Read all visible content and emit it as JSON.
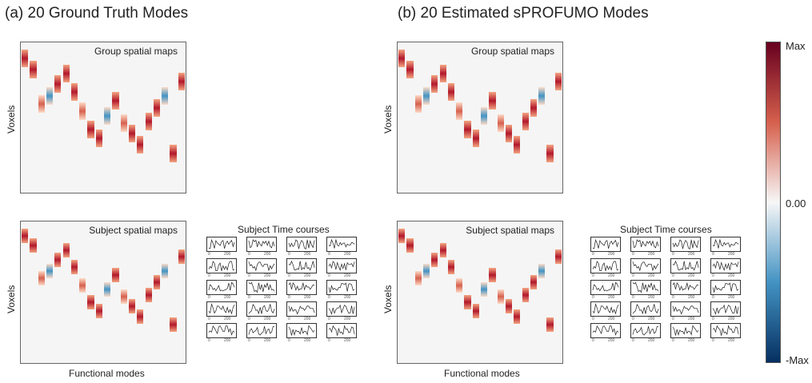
{
  "panels": {
    "a_title": "(a) 20 Ground Truth Modes",
    "b_title": "(b) 20 Estimated sPROFUMO Modes"
  },
  "labels": {
    "group_maps": "Group spatial maps",
    "subject_maps": "Subject spatial maps",
    "time_courses": "Subject Time courses",
    "voxels": "Voxels",
    "functional_modes": "Functional modes",
    "tick_0": "0",
    "tick_200": "200"
  },
  "colorbar": {
    "max": "Max",
    "mid": "0.00",
    "min": "-Max",
    "colors": {
      "max": "#67001f",
      "pos": "#d6604d",
      "zero": "#f7f7f7",
      "neg": "#4393c3",
      "min": "#053061"
    }
  },
  "modes": {
    "count": 20,
    "ground_truth_rows": [
      0.05,
      0.12,
      0.35,
      0.3,
      0.22,
      0.15,
      0.27,
      0.4,
      0.52,
      0.58,
      0.43,
      0.33,
      0.48,
      0.55,
      0.62,
      0.47,
      0.38,
      0.3,
      0.68,
      0.2
    ],
    "estimated_rows": [
      0.05,
      0.12,
      0.35,
      0.3,
      0.22,
      0.15,
      0.27,
      0.4,
      0.52,
      0.58,
      0.43,
      0.33,
      0.48,
      0.55,
      0.62,
      0.47,
      0.38,
      0.3,
      0.68,
      0.2
    ]
  },
  "time_courses": {
    "rows": 5,
    "cols": 4
  }
}
